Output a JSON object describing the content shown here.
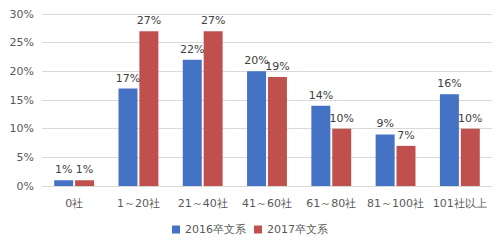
{
  "chart_data": {
    "type": "bar",
    "categories": [
      "0社",
      "1～20社",
      "21～40社",
      "41～60社",
      "61～80社",
      "81～100社",
      "101社以上"
    ],
    "series": [
      {
        "name": "2016卒文系",
        "color": "#4472c4",
        "values": [
          1,
          17,
          22,
          20,
          14,
          9,
          16
        ],
        "value_labels": [
          "1%",
          "17%",
          "22%",
          "20%",
          "14%",
          "9%",
          "16%"
        ]
      },
      {
        "name": "2017卒文系",
        "color": "#c0504d",
        "values": [
          1,
          27,
          27,
          19,
          10,
          7,
          10
        ],
        "value_labels": [
          "1%",
          "27%",
          "27%",
          "19%",
          "10%",
          "7%",
          "10%"
        ]
      }
    ],
    "ylim": [
      0,
      30
    ],
    "yticks": [
      {
        "value": 0,
        "label": "0%"
      },
      {
        "value": 5,
        "label": "5%"
      },
      {
        "value": 10,
        "label": "10%"
      },
      {
        "value": 15,
        "label": "15%"
      },
      {
        "value": 20,
        "label": "20%"
      },
      {
        "value": 25,
        "label": "25%"
      },
      {
        "value": 30,
        "label": "30%"
      }
    ],
    "grid": true,
    "legend": "bottom",
    "data_labels": true
  }
}
